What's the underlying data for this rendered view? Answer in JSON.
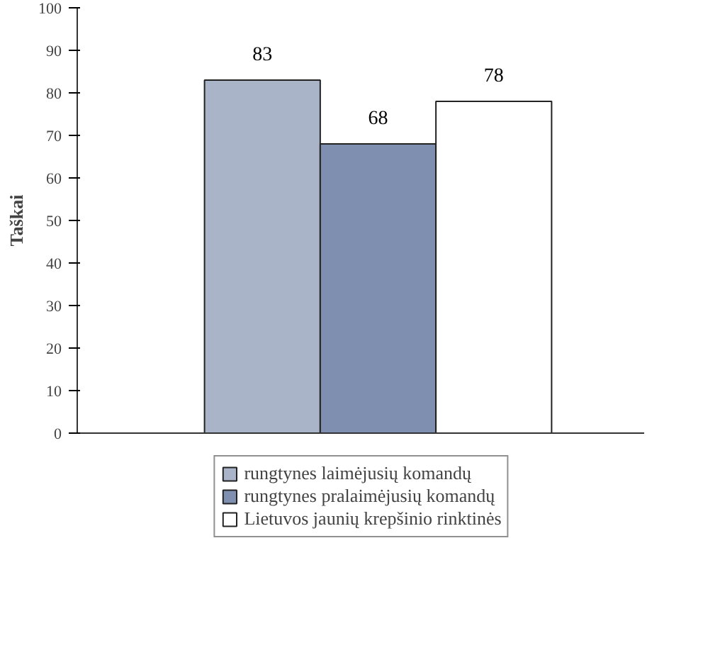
{
  "chart_data": {
    "type": "bar",
    "ylabel": "Taškai",
    "categories": [
      null,
      null,
      null
    ],
    "series": [
      {
        "name": "rungtynes laimėjusių komandų",
        "color": "#a9b4c8",
        "values": [
          83,
          null,
          null
        ]
      },
      {
        "name": "rungtynes pralaimėjusių komandų",
        "color": "#7f8fb0",
        "values": [
          null,
          68,
          null
        ]
      },
      {
        "name": "Lietuvos jaunių krepšinio rinktinės",
        "color": "#ffffff",
        "values": [
          null,
          null,
          78
        ]
      }
    ],
    "ylim": [
      0,
      100
    ],
    "yticks": [
      0,
      10,
      20,
      30,
      40,
      50,
      60,
      70,
      80,
      90,
      100
    ],
    "grid": false,
    "legend": "bottom",
    "data_labels": true
  }
}
